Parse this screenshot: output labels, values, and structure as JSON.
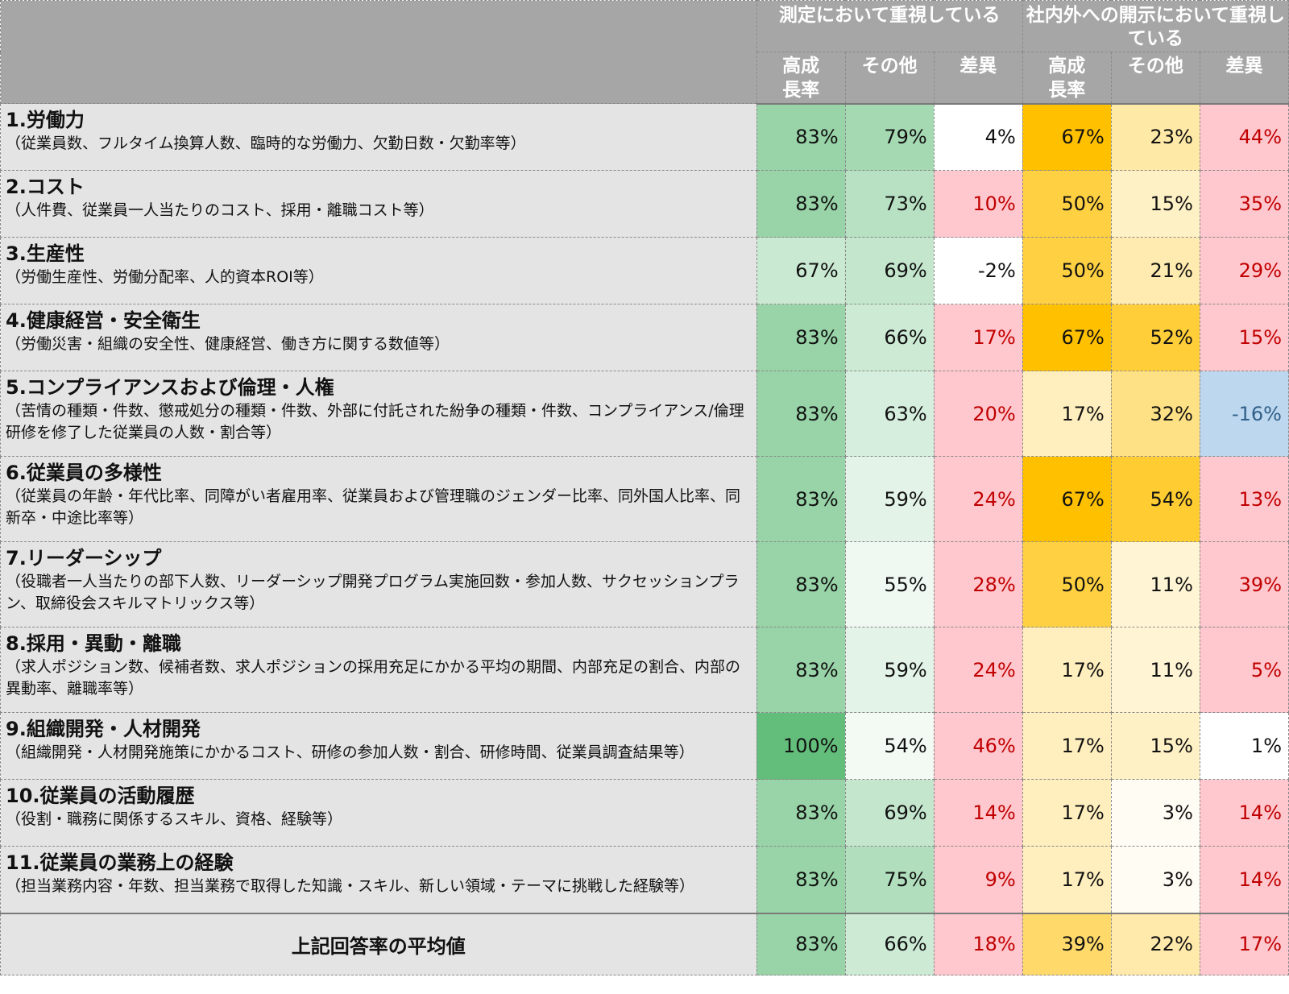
{
  "chart_data": {
    "type": "table",
    "header": {
      "group1": "測定において重視している",
      "group2": "社内外への開示において重視している",
      "columns": [
        "高成\n長率",
        "その他",
        "差異",
        "高成\n長率",
        "その他",
        "差異"
      ]
    },
    "rows": [
      {
        "title": "1.労働力",
        "desc": "（従業員数、フルタイム換算人数、臨時的な労働力、欠勤日数・欠勤率等）",
        "cells": [
          "83%",
          "79%",
          "4%",
          "67%",
          "23%",
          "44%"
        ]
      },
      {
        "title": "2.コスト",
        "desc": "（人件費、従業員一人当たりのコスト、採用・離職コスト等）",
        "cells": [
          "83%",
          "73%",
          "10%",
          "50%",
          "15%",
          "35%"
        ]
      },
      {
        "title": "3.生産性",
        "desc": "（労働生産性、労働分配率、人的資本ROI等）",
        "cells": [
          "67%",
          "69%",
          "-2%",
          "50%",
          "21%",
          "29%"
        ]
      },
      {
        "title": "4.健康経営・安全衛生",
        "desc": "（労働災害・組織の安全性、健康経営、働き方に関する数値等）",
        "cells": [
          "83%",
          "66%",
          "17%",
          "67%",
          "52%",
          "15%"
        ]
      },
      {
        "title": "5.コンプライアンスおよび倫理・人権",
        "desc": "（苦情の種類・件数、懲戒処分の種類・件数、外部に付託された紛争の種類・件数、コンプライアンス/倫理研修を修了した従業員の人数・割合等）",
        "cells": [
          "83%",
          "63%",
          "20%",
          "17%",
          "32%",
          "-16%"
        ]
      },
      {
        "title": "6.従業員の多様性",
        "desc": "（従業員の年齢・年代比率、同障がい者雇用率、従業員および管理職のジェンダー比率、同外国人比率、同新卒・中途比率等）",
        "cells": [
          "83%",
          "59%",
          "24%",
          "67%",
          "54%",
          "13%"
        ]
      },
      {
        "title": "7.リーダーシップ",
        "desc": "（役職者一人当たりの部下人数、リーダーシップ開発プログラム実施回数・参加人数、サクセッションプラン、取締役会スキルマトリックス等）",
        "cells": [
          "83%",
          "55%",
          "28%",
          "50%",
          "11%",
          "39%"
        ]
      },
      {
        "title": "8.採用・異動・離職",
        "desc": "（求人ポジション数、候補者数、求人ポジションの採用充足にかかる平均の期間、内部充足の割合、内部の異動率、離職率等）",
        "cells": [
          "83%",
          "59%",
          "24%",
          "17%",
          "11%",
          "5%"
        ]
      },
      {
        "title": "9.組織開発・人材開発",
        "desc": "（組織開発・人材開発施策にかかるコスト、研修の参加人数・割合、研修時間、従業員調査結果等）",
        "cells": [
          "100%",
          "54%",
          "46%",
          "17%",
          "15%",
          "1%"
        ]
      },
      {
        "title": "10.従業員の活動履歴",
        "desc": "（役割・職務に関係するスキル、資格、経験等）",
        "cells": [
          "83%",
          "69%",
          "14%",
          "17%",
          "3%",
          "14%"
        ]
      },
      {
        "title": "11.従業員の業務上の経験",
        "desc": "（担当業務内容・年数、担当業務で取得した知識・スキル、新しい領域・テーマに挑戦した経験等）",
        "cells": [
          "83%",
          "75%",
          "9%",
          "17%",
          "3%",
          "14%"
        ]
      }
    ],
    "average": {
      "label": "上記回答率の平均値",
      "cells": [
        "83%",
        "66%",
        "18%",
        "39%",
        "22%",
        "17%"
      ]
    },
    "colors": {
      "header_bg": "#a6a6a6",
      "label_bg": "#e4e4e4",
      "measure_scale": [
        "#ffffff",
        "#63be7b"
      ],
      "disclose_scale": [
        "#ffffff",
        "#ffc000"
      ],
      "positive_diff_bg": "#ffc7ce",
      "positive_diff_text": "#c00000",
      "negative_diff_bg": "#bdd7ee",
      "negative_diff_text": "#2f5f8a"
    }
  }
}
